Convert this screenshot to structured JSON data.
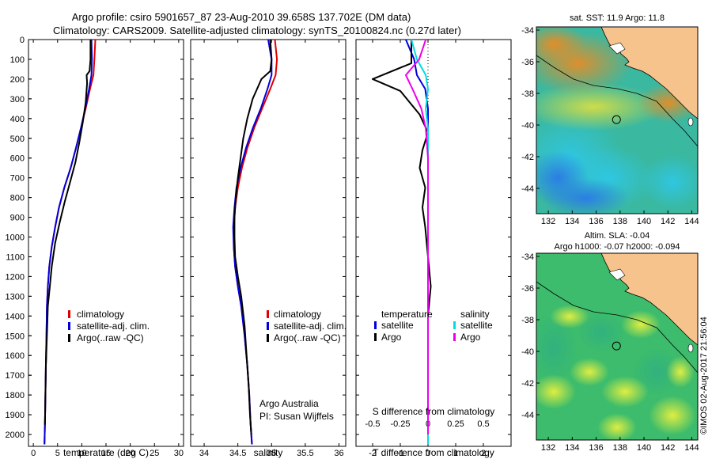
{
  "figure": {
    "title_line1": "Argo profile: csiro 5901657_87 23-Aug-2010 39.658S 137.702E (DM data)",
    "title_line2": "Climatology: CARS2009. Satellite-adjusted climatology: synTS_20100824.nc (0.27d later)",
    "credit": "©IMOS 02-Aug-2017 21:56:04",
    "colors": {
      "climatology": "#e00000",
      "satellite": "#0000dd",
      "argo": "#000000",
      "satellite_s": "#00dddd",
      "argo_s": "#ee00ee",
      "land": "#f7c38d"
    }
  },
  "chart_data": [
    {
      "type": "line",
      "id": "temperature",
      "xlabel": "temperature (deg C)",
      "xlim": [
        -1,
        31
      ],
      "xticks": [
        0,
        5,
        10,
        15,
        20,
        25,
        30
      ],
      "ylim": [
        0,
        2060
      ],
      "yticks": [
        0,
        100,
        200,
        300,
        400,
        500,
        600,
        700,
        800,
        900,
        1000,
        1100,
        1200,
        1300,
        1400,
        1500,
        1600,
        1700,
        1800,
        1900,
        2000
      ],
      "legend": [
        "climatology",
        "satellite-adj. clim.",
        "Argo(..raw -QC)"
      ],
      "series": [
        {
          "name": "climatology",
          "color": "#e00000",
          "x": [
            12.8,
            12.6,
            12.4,
            11.7,
            10.8,
            9.8,
            8.8,
            7.7,
            6.4,
            5.3,
            4.5,
            3.8,
            3.3,
            3.0,
            2.8,
            2.7,
            2.6,
            2.5,
            2.4,
            2.3
          ],
          "depth": [
            0,
            100,
            180,
            250,
            350,
            450,
            550,
            650,
            750,
            850,
            950,
            1050,
            1150,
            1250,
            1350,
            1500,
            1650,
            1800,
            1950,
            2050
          ]
        },
        {
          "name": "satellite-adj. clim.",
          "color": "#0000dd",
          "x": [
            12.0,
            12.1,
            12.0,
            11.5,
            10.7,
            9.8,
            8.8,
            7.7,
            6.4,
            5.3,
            4.5,
            3.8,
            3.3,
            3.0,
            2.8,
            2.7,
            2.6,
            2.5,
            2.4,
            2.3
          ],
          "depth": [
            0,
            100,
            180,
            250,
            350,
            450,
            550,
            650,
            750,
            850,
            950,
            1050,
            1150,
            1250,
            1350,
            1500,
            1650,
            1800,
            1950,
            2050
          ]
        },
        {
          "name": "Argo(..raw -QC)",
          "color": "#000000",
          "x": [
            11.8,
            11.8,
            11.6,
            11.0,
            11.1,
            10.8,
            10.2,
            9.5,
            8.7,
            7.6,
            6.5,
            5.5,
            4.5,
            3.8,
            3.4,
            3.0,
            2.8,
            2.6,
            2.5,
            2.4
          ],
          "depth": [
            0,
            100,
            160,
            180,
            220,
            320,
            420,
            520,
            620,
            720,
            820,
            920,
            1030,
            1150,
            1250,
            1350,
            1500,
            1650,
            1800,
            1950
          ]
        }
      ]
    },
    {
      "type": "line",
      "id": "salinity",
      "xlabel": "salinity",
      "xlim": [
        33.8,
        36.1
      ],
      "xticks": [
        34,
        34.5,
        35,
        35.5,
        36
      ],
      "ylim": [
        0,
        2060
      ],
      "legend": [
        "climatology",
        "satellite-adj. clim.",
        "Argo(..raw -QC)"
      ],
      "annotation": [
        "Argo Australia",
        "PI: Susan Wijffels"
      ],
      "series": [
        {
          "name": "climatology",
          "color": "#e00000",
          "x": [
            35.05,
            35.08,
            35.06,
            34.98,
            34.86,
            34.74,
            34.64,
            34.56,
            34.5,
            34.46,
            34.44,
            34.44,
            34.46,
            34.5,
            34.55,
            34.6,
            34.64,
            34.67,
            34.69,
            34.71
          ],
          "depth": [
            0,
            100,
            180,
            250,
            350,
            450,
            550,
            650,
            750,
            850,
            950,
            1050,
            1150,
            1250,
            1350,
            1500,
            1650,
            1800,
            1950,
            2050
          ]
        },
        {
          "name": "satellite-adj. clim.",
          "color": "#0000dd",
          "x": [
            34.95,
            35.0,
            35.0,
            34.94,
            34.84,
            34.72,
            34.62,
            34.54,
            34.48,
            34.45,
            34.43,
            34.44,
            34.46,
            34.5,
            34.55,
            34.6,
            34.64,
            34.67,
            34.69,
            34.71
          ],
          "depth": [
            0,
            100,
            180,
            250,
            350,
            450,
            550,
            650,
            750,
            850,
            950,
            1050,
            1150,
            1250,
            1350,
            1500,
            1650,
            1800,
            1950,
            2050
          ]
        },
        {
          "name": "Argo(..raw -QC)",
          "color": "#000000",
          "x": [
            34.98,
            35.0,
            34.98,
            34.85,
            34.72,
            34.64,
            34.58,
            34.54,
            34.5,
            34.47,
            34.45,
            34.45,
            34.46,
            34.5,
            34.55,
            34.6,
            34.63,
            34.66,
            34.68,
            34.7
          ],
          "depth": [
            0,
            100,
            160,
            200,
            300,
            400,
            500,
            600,
            700,
            800,
            900,
            1000,
            1100,
            1200,
            1300,
            1450,
            1600,
            1750,
            1900,
            2000
          ]
        }
      ]
    },
    {
      "type": "line",
      "id": "difference",
      "xlabel": "T difference from climatology",
      "xlabel_top": "S difference from climatology",
      "xlim": [
        -2.6,
        3.0
      ],
      "xticks": [
        -2,
        -1,
        0,
        1,
        2
      ],
      "xticks_s": [
        -0.5,
        -0.25,
        0,
        0.25,
        0.5
      ],
      "ylim": [
        0,
        2060
      ],
      "legend_t": {
        "title": "temperature",
        "items": [
          "satellite",
          "Argo"
        ]
      },
      "legend_s": {
        "title": "salinity",
        "items": [
          "satellite",
          "Argo"
        ]
      },
      "series": [
        {
          "name": "T satellite",
          "color": "#0000dd",
          "x": [
            -0.8,
            -0.5,
            -0.4,
            -0.1,
            0.0,
            0.0,
            0.0,
            0.0,
            0.0,
            0.0,
            0.0,
            0.0,
            0.0,
            0.0,
            0.0,
            0.0
          ],
          "depth": [
            0,
            100,
            180,
            250,
            350,
            450,
            550,
            650,
            750,
            850,
            950,
            1100,
            1300,
            1500,
            1800,
            2050
          ]
        },
        {
          "name": "T Argo",
          "color": "#000000",
          "x": [
            -0.6,
            -0.6,
            -2.0,
            -1.0,
            -0.3,
            0.0,
            -0.2,
            -0.3,
            -0.1,
            -0.2,
            -0.1,
            0.0,
            0.1,
            0.0,
            0.0,
            0.0
          ],
          "depth": [
            0,
            120,
            200,
            260,
            380,
            470,
            560,
            650,
            750,
            850,
            950,
            1100,
            1250,
            1400,
            1700,
            1950
          ]
        },
        {
          "name": "S satellite",
          "color": "#00dddd",
          "x": [
            -0.15,
            -0.1,
            -0.02,
            0.0,
            -0.02,
            0.0,
            0.0,
            0.0,
            0.0,
            0.0,
            0.0,
            0.0
          ],
          "depth": [
            0,
            100,
            180,
            250,
            350,
            450,
            600,
            800,
            1100,
            1400,
            1700,
            2050
          ]
        },
        {
          "name": "S Argo",
          "color": "#ee00ee",
          "x": [
            -0.02,
            -0.08,
            -0.2,
            -0.14,
            -0.06,
            -0.02,
            0.0,
            0.0,
            0.0,
            0.0,
            0.0,
            0.0
          ],
          "depth": [
            0,
            100,
            180,
            250,
            350,
            450,
            600,
            800,
            1100,
            1400,
            1700,
            2000
          ]
        }
      ]
    },
    {
      "type": "heatmap",
      "id": "sst-map",
      "title": "sat. SST: 11.9  Argo: 11.8",
      "xlim": [
        131,
        144.5
      ],
      "ylim": [
        -45.6,
        -33.8
      ],
      "xticks": [
        132,
        134,
        136,
        138,
        140,
        142,
        144
      ],
      "yticks": [
        -34,
        -36,
        -38,
        -40,
        -42,
        -44
      ],
      "marker": {
        "lon": 137.702,
        "lat": -39.658
      }
    },
    {
      "type": "heatmap",
      "id": "sla-map",
      "title_line1": "Altim. SLA: -0.04",
      "title_line2": "Argo h1000: -0.07 h2000: -0.094",
      "xlim": [
        131,
        144.5
      ],
      "ylim": [
        -45.6,
        -33.8
      ],
      "xticks": [
        132,
        134,
        136,
        138,
        140,
        142,
        144
      ],
      "yticks": [
        -34,
        -36,
        -38,
        -40,
        -42,
        -44
      ],
      "marker": {
        "lon": 137.702,
        "lat": -39.658
      }
    }
  ]
}
